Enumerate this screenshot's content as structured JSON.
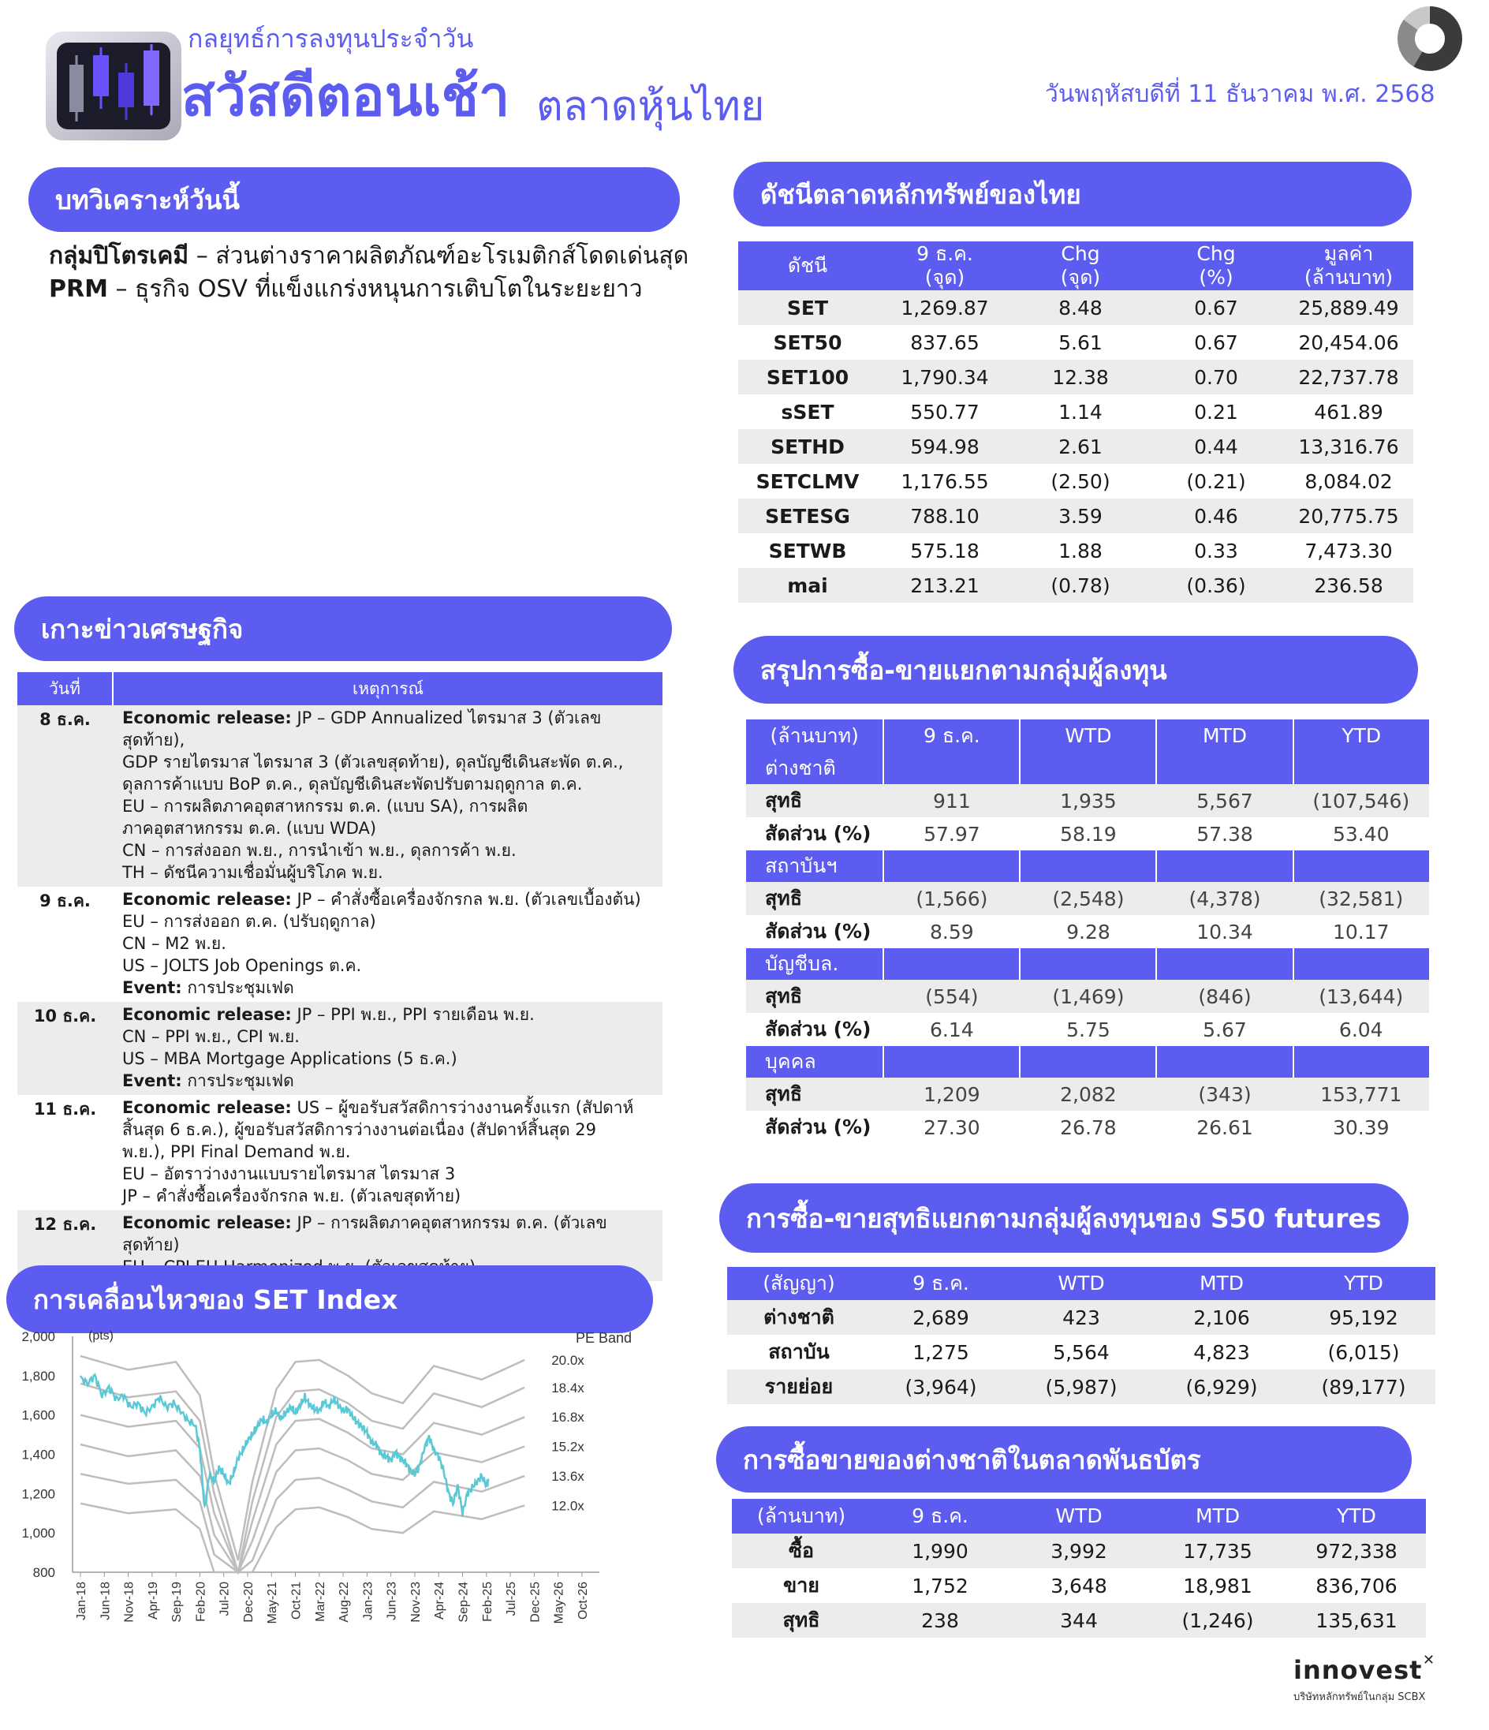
{
  "header": {
    "subtitle": "กลยุทธ์การลงทุนประจำวัน",
    "title_main": "สวัสดีตอนเช้า",
    "title_sub": "ตลาดหุ้นไทย",
    "date": "วันพฤหัสบดีที่ 11 ธันวาคม พ.ศ. 2568"
  },
  "analysis": {
    "heading": "บทวิเคราะห์วันนี้",
    "items": [
      {
        "bold": "กลุ่มปิโตรเคมี",
        "text": " – ส่วนต่างราคาผลิตภัณฑ์อะโรเมติกส์โดดเด่นสุด"
      },
      {
        "bold": "PRM",
        "text": " – ธุรกิจ OSV ที่แข็งแกร่งหนุนการเติบโตในระยะยาว"
      }
    ]
  },
  "indices": {
    "heading": "ดัชนีตลาดหลักทรัพย์ของไทย",
    "headers": [
      "ดัชนี",
      "9 ธ.ค.\n(จุด)",
      "Chg\n(จุด)",
      "Chg\n(%)",
      "มูลค่า\n(ล้านบาท)"
    ],
    "rows": [
      [
        "SET",
        "1,269.87",
        "8.48",
        "0.67",
        "25,889.49"
      ],
      [
        "SET50",
        "837.65",
        "5.61",
        "0.67",
        "20,454.06"
      ],
      [
        "SET100",
        "1,790.34",
        "12.38",
        "0.70",
        "22,737.78"
      ],
      [
        "sSET",
        "550.77",
        "1.14",
        "0.21",
        "461.89"
      ],
      [
        "SETHD",
        "594.98",
        "2.61",
        "0.44",
        "13,316.76"
      ],
      [
        "SETCLMV",
        "1,176.55",
        "(2.50)",
        "(0.21)",
        "8,084.02"
      ],
      [
        "SETESG",
        "788.10",
        "3.59",
        "0.46",
        "20,775.75"
      ],
      [
        "SETWB",
        "575.18",
        "1.88",
        "0.33",
        "7,473.30"
      ],
      [
        "mai",
        "213.21",
        "(0.78)",
        "(0.36)",
        "236.58"
      ]
    ]
  },
  "econ": {
    "heading": "เกาะข่าวเศรษฐกิจ",
    "col_date": "วันที่",
    "col_event": "เหตุการณ์",
    "rows": [
      {
        "date": "8 ธ.ค.",
        "lines": [
          {
            "b": "Economic release:",
            "t": " JP – GDP Annualized ไตรมาส 3 (ตัวเลขสุดท้าย),"
          },
          {
            "b": "",
            "t": "GDP รายไตรมาส ไตรมาส 3 (ตัวเลขสุดท้าย), ดุลบัญชีเดินสะพัด ต.ค.,"
          },
          {
            "b": "",
            "t": "ดุลการค้าแบบ BoP ต.ค., ดุลบัญชีเดินสะพัดปรับตามฤดูกาล ต.ค."
          },
          {
            "b": "",
            "t": "EU – การผลิตภาคอุตสาหกรรม ต.ค. (แบบ SA), การผลิต"
          },
          {
            "b": "",
            "t": "ภาคอุตสาหกรรม ต.ค. (แบบ WDA)"
          },
          {
            "b": "",
            "t": "CN – การส่งออก พ.ย., การนำเข้า พ.ย., ดุลการค้า พ.ย."
          },
          {
            "b": "",
            "t": "TH – ดัชนีความเชื่อมั่นผู้บริโภค พ.ย."
          }
        ]
      },
      {
        "date": "9 ธ.ค.",
        "lines": [
          {
            "b": "Economic release:",
            "t": " JP – คำสั่งซื้อเครื่องจักรกล พ.ย. (ตัวเลขเบื้องต้น)"
          },
          {
            "b": "",
            "t": "EU – การส่งออก ต.ค. (ปรับฤดูกาล)"
          },
          {
            "b": "",
            "t": "CN – M2 พ.ย."
          },
          {
            "b": "",
            "t": "US – JOLTS Job Openings ต.ค."
          },
          {
            "b": "Event:",
            "t": " การประชุมเฟด"
          }
        ]
      },
      {
        "date": "10 ธ.ค.",
        "lines": [
          {
            "b": "Economic release:",
            "t": " JP – PPI พ.ย., PPI รายเดือน พ.ย."
          },
          {
            "b": "",
            "t": "CN – PPI พ.ย., CPI พ.ย."
          },
          {
            "b": "",
            "t": "US – MBA Mortgage Applications (5 ธ.ค.)"
          },
          {
            "b": "Event:",
            "t": " การประชุมเฟด"
          }
        ]
      },
      {
        "date": "11 ธ.ค.",
        "lines": [
          {
            "b": "Economic release:",
            "t": " US – ผู้ขอรับสวัสดิการว่างงานครั้งแรก (สัปดาห์"
          },
          {
            "b": "",
            "t": "สิ้นสุด 6 ธ.ค.), ผู้ขอรับสวัสดิการว่างงานต่อเนื่อง (สัปดาห์สิ้นสุด 29"
          },
          {
            "b": "",
            "t": "พ.ย.), PPI Final Demand พ.ย."
          },
          {
            "b": "",
            "t": "EU – อัตราว่างงานแบบรายไตรมาส ไตรมาส 3"
          },
          {
            "b": "",
            "t": "JP – คำสั่งซื้อเครื่องจักรกล พ.ย. (ตัวเลขสุดท้าย)"
          }
        ]
      },
      {
        "date": "12 ธ.ค.",
        "lines": [
          {
            "b": "Economic release:",
            "t": " JP – การผลิตภาคอุตสาหกรรม ต.ค. (ตัวเลข"
          },
          {
            "b": "",
            "t": "สุดท้าย)"
          },
          {
            "b": "",
            "t": "EU – CPI EU Harmonized พ.ย. (ตัวเลขสุดท้าย)"
          }
        ]
      }
    ]
  },
  "investors": {
    "heading": "สรุปการซื้อ-ขายแยกตามกลุ่มผู้ลงทุน",
    "headers": [
      "(ล้านบาท)",
      "9 ธ.ค.",
      "WTD",
      "MTD",
      "YTD"
    ],
    "groups": [
      {
        "name": "ต่างชาติ",
        "net": [
          "911",
          "1,935",
          "5,567",
          "(107,546)"
        ],
        "share": [
          "57.97",
          "58.19",
          "57.38",
          "53.40"
        ]
      },
      {
        "name": "สถาบันฯ",
        "net": [
          "(1,566)",
          "(2,548)",
          "(4,378)",
          "(32,581)"
        ],
        "share": [
          "8.59",
          "9.28",
          "10.34",
          "10.17"
        ]
      },
      {
        "name": "บัญชีบล.",
        "net": [
          "(554)",
          "(1,469)",
          "(846)",
          "(13,644)"
        ],
        "share": [
          "6.14",
          "5.75",
          "5.67",
          "6.04"
        ]
      },
      {
        "name": "บุคคล",
        "net": [
          "1,209",
          "2,082",
          "(343)",
          "153,771"
        ],
        "share": [
          "27.30",
          "26.78",
          "26.61",
          "30.39"
        ]
      }
    ],
    "net_label": "สุทธิ",
    "share_label": "สัดส่วน (%)"
  },
  "futures": {
    "heading": "การซื้อ-ขายสุทธิแยกตามกลุ่มผู้ลงทุนของ S50 futures",
    "headers": [
      "(สัญญา)",
      "9 ธ.ค.",
      "WTD",
      "MTD",
      "YTD"
    ],
    "rows": [
      [
        "ต่างชาติ",
        "2,689",
        "423",
        "2,106",
        "95,192"
      ],
      [
        "สถาบัน",
        "1,275",
        "5,564",
        "4,823",
        "(6,015)"
      ],
      [
        "รายย่อย",
        "(3,964)",
        "(5,987)",
        "(6,929)",
        "(89,177)"
      ]
    ]
  },
  "bonds": {
    "heading": "การซื้อขายของต่างชาติในตลาดพันธบัตร",
    "headers": [
      "(ล้านบาท)",
      "9 ธ.ค.",
      "WTD",
      "MTD",
      "YTD"
    ],
    "rows": [
      [
        "ซื้อ",
        "1,990",
        "3,992",
        "17,735",
        "972,338"
      ],
      [
        "ขาย",
        "1,752",
        "3,648",
        "18,981",
        "836,706"
      ],
      [
        "สุทธิ",
        "238",
        "344",
        "(1,246)",
        "135,631"
      ]
    ]
  },
  "set_chart": {
    "heading": "การเคลื่อนไหวของ SET Index",
    "unit_label": "(pts)",
    "legend_label": "PE Band",
    "colors": {
      "line": "#5bc8d6",
      "band": "#bdbdbd"
    },
    "chart_data": {
      "type": "line",
      "ylim": [
        800,
        2000
      ],
      "yticks": [
        "800",
        "1,000",
        "1,200",
        "1,400",
        "1,600",
        "1,800",
        "2,000"
      ],
      "xticks": [
        "Jan-18",
        "Jun-18",
        "Nov-18",
        "Apr-19",
        "Sep-19",
        "Feb-20",
        "Jul-20",
        "Dec-20",
        "May-21",
        "Oct-21",
        "Mar-22",
        "Aug-22",
        "Jan-23",
        "Jun-23",
        "Nov-23",
        "Apr-24",
        "Sep-24",
        "Feb-25",
        "Jul-25",
        "Dec-25",
        "May-26",
        "Oct-26"
      ],
      "pe_bands": [
        {
          "label": "20.0x",
          "values": [
            1900,
            1830,
            1870,
            1700,
            1300,
            860,
            1260,
            1730,
            1870,
            1880,
            1800,
            1710,
            1660,
            1850,
            1780,
            1880
          ]
        },
        {
          "label": "18.4x",
          "values": [
            1760,
            1690,
            1720,
            1570,
            1200,
            790,
            1160,
            1590,
            1720,
            1730,
            1660,
            1570,
            1530,
            1710,
            1640,
            1740
          ]
        },
        {
          "label": "16.8x",
          "values": [
            1600,
            1540,
            1570,
            1430,
            1100,
            720,
            1060,
            1450,
            1570,
            1580,
            1510,
            1430,
            1400,
            1560,
            1500,
            1590
          ]
        },
        {
          "label": "15.2x",
          "values": [
            1450,
            1390,
            1420,
            1290,
            990,
            650,
            960,
            1310,
            1420,
            1430,
            1370,
            1300,
            1270,
            1410,
            1360,
            1440
          ]
        },
        {
          "label": "13.6x",
          "values": [
            1300,
            1250,
            1270,
            1160,
            890,
            580,
            860,
            1170,
            1270,
            1280,
            1220,
            1160,
            1130,
            1260,
            1210,
            1290
          ]
        },
        {
          "label": "12.0x",
          "values": [
            1150,
            1100,
            1120,
            1020,
            780,
            510,
            760,
            1030,
            1120,
            1130,
            1080,
            1020,
            1000,
            1110,
            1070,
            1140
          ]
        }
      ],
      "band_x_index": [
        0,
        2,
        4,
        5,
        5.6,
        6.6,
        7.2,
        8.2,
        9,
        10,
        11.2,
        12.2,
        13.5,
        14.8,
        16.8,
        18.6
      ],
      "series": [
        {
          "values": [
            [
              0,
              1790
            ],
            [
              0.3,
              1760
            ],
            [
              0.6,
              1800
            ],
            [
              0.9,
              1700
            ],
            [
              1.2,
              1740
            ],
            [
              1.5,
              1680
            ],
            [
              1.8,
              1700
            ],
            [
              2.1,
              1640
            ],
            [
              2.4,
              1660
            ],
            [
              2.7,
              1610
            ],
            [
              3,
              1640
            ],
            [
              3.3,
              1690
            ],
            [
              3.6,
              1640
            ],
            [
              3.9,
              1660
            ],
            [
              4.2,
              1620
            ],
            [
              4.5,
              1570
            ],
            [
              4.8,
              1550
            ],
            [
              5,
              1430
            ],
            [
              5.2,
              1120
            ],
            [
              5.4,
              1300
            ],
            [
              5.6,
              1260
            ],
            [
              5.8,
              1330
            ],
            [
              6,
              1300
            ],
            [
              6.2,
              1250
            ],
            [
              6.4,
              1300
            ],
            [
              6.6,
              1380
            ],
            [
              6.8,
              1420
            ],
            [
              7,
              1470
            ],
            [
              7.2,
              1500
            ],
            [
              7.4,
              1540
            ],
            [
              7.6,
              1580
            ],
            [
              7.8,
              1560
            ],
            [
              8,
              1600
            ],
            [
              8.2,
              1620
            ],
            [
              8.4,
              1580
            ],
            [
              8.6,
              1610
            ],
            [
              8.8,
              1640
            ],
            [
              9,
              1610
            ],
            [
              9.2,
              1650
            ],
            [
              9.4,
              1690
            ],
            [
              9.6,
              1650
            ],
            [
              9.8,
              1630
            ],
            [
              10,
              1620
            ],
            [
              10.2,
              1670
            ],
            [
              10.4,
              1640
            ],
            [
              10.6,
              1680
            ],
            [
              10.8,
              1650
            ],
            [
              11,
              1620
            ],
            [
              11.2,
              1630
            ],
            [
              11.4,
              1590
            ],
            [
              11.6,
              1560
            ],
            [
              11.8,
              1540
            ],
            [
              12,
              1510
            ],
            [
              12.2,
              1460
            ],
            [
              12.4,
              1450
            ],
            [
              12.6,
              1400
            ],
            [
              12.8,
              1390
            ],
            [
              13,
              1370
            ],
            [
              13.2,
              1410
            ],
            [
              13.4,
              1380
            ],
            [
              13.6,
              1360
            ],
            [
              13.8,
              1320
            ],
            [
              14,
              1300
            ],
            [
              14.2,
              1340
            ],
            [
              14.4,
              1430
            ],
            [
              14.6,
              1490
            ],
            [
              14.8,
              1420
            ],
            [
              15,
              1390
            ],
            [
              15.2,
              1320
            ],
            [
              15.4,
              1210
            ],
            [
              15.6,
              1150
            ],
            [
              15.8,
              1240
            ],
            [
              16,
              1100
            ],
            [
              16.2,
              1200
            ],
            [
              16.4,
              1230
            ],
            [
              16.6,
              1260
            ],
            [
              16.8,
              1290
            ],
            [
              17,
              1240
            ],
            [
              17.1,
              1270
            ]
          ]
        }
      ]
    }
  },
  "footer": {
    "brand": "innovest",
    "brand_sub": "บริษัทหลักทรัพย์ในกลุ่ม SCBX"
  }
}
